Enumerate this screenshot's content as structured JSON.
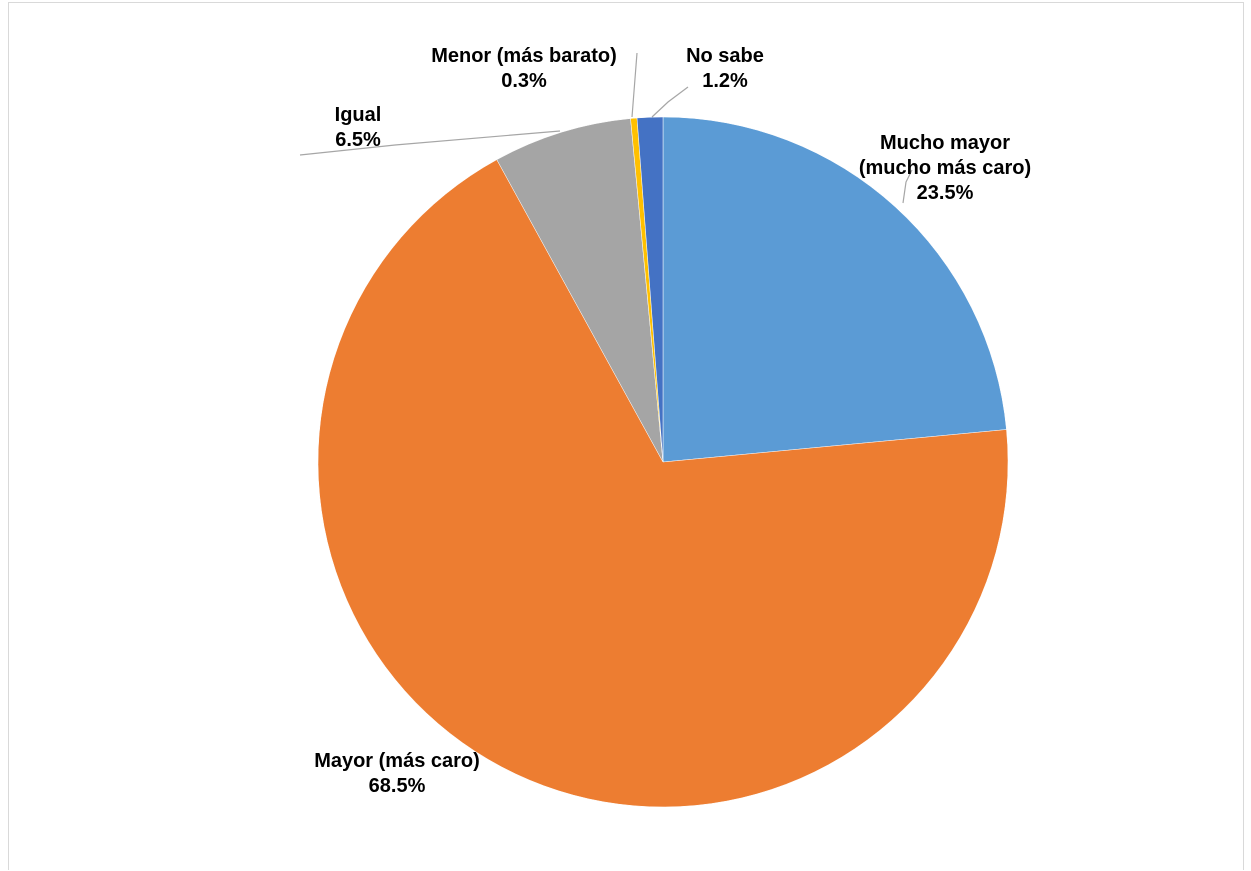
{
  "chart_data": {
    "type": "pie",
    "title": "",
    "start_angle_deg": 0,
    "direction": "clockwise",
    "slices": [
      {
        "label_lines": [
          "Mucho mayor",
          "(mucho más caro)"
        ],
        "value_text": "23.5%",
        "value": 23.5,
        "color": "#5b9bd5"
      },
      {
        "label_lines": [
          "Mayor (más caro)"
        ],
        "value_text": "68.5%",
        "value": 68.5,
        "color": "#ed7d31"
      },
      {
        "label_lines": [
          "Igual"
        ],
        "value_text": "6.5%",
        "value": 6.5,
        "color": "#a5a5a5"
      },
      {
        "label_lines": [
          "Menor (más barato)"
        ],
        "value_text": "0.3%",
        "value": 0.3,
        "color": "#ffc000"
      },
      {
        "label_lines": [
          "No sabe"
        ],
        "value_text": "1.2%",
        "value": 1.2,
        "color": "#4472c4"
      }
    ],
    "legend": "none",
    "leader_line_color": "#a6a6a6"
  }
}
